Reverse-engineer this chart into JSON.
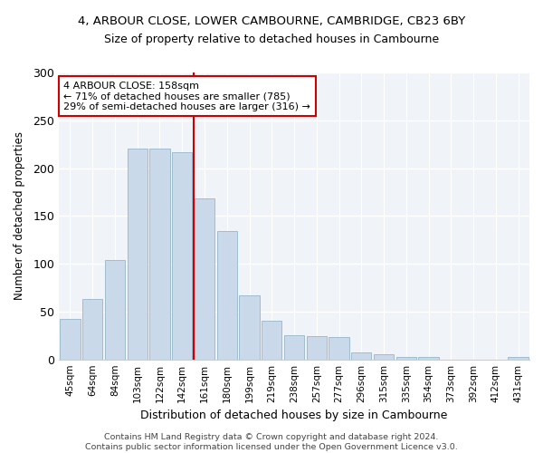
{
  "title1": "4, ARBOUR CLOSE, LOWER CAMBOURNE, CAMBRIDGE, CB23 6BY",
  "title2": "Size of property relative to detached houses in Cambourne",
  "xlabel": "Distribution of detached houses by size in Cambourne",
  "ylabel": "Number of detached properties",
  "bar_labels": [
    "45sqm",
    "64sqm",
    "84sqm",
    "103sqm",
    "122sqm",
    "142sqm",
    "161sqm",
    "180sqm",
    "199sqm",
    "219sqm",
    "238sqm",
    "257sqm",
    "277sqm",
    "296sqm",
    "315sqm",
    "335sqm",
    "354sqm",
    "373sqm",
    "392sqm",
    "412sqm",
    "431sqm"
  ],
  "bar_values": [
    42,
    63,
    104,
    220,
    220,
    217,
    168,
    134,
    67,
    40,
    25,
    24,
    23,
    7,
    5,
    3,
    3,
    0,
    0,
    0,
    3
  ],
  "bar_color": "#c9d9ea",
  "bar_edge_color": "#a0bcd0",
  "vline_color": "#cc0000",
  "annotation_text": "4 ARBOUR CLOSE: 158sqm\n← 71% of detached houses are smaller (785)\n29% of semi-detached houses are larger (316) →",
  "annotation_box_facecolor": "#ffffff",
  "annotation_box_edgecolor": "#cc0000",
  "ylim": [
    0,
    300
  ],
  "yticks": [
    0,
    50,
    100,
    150,
    200,
    250,
    300
  ],
  "footer": "Contains HM Land Registry data © Crown copyright and database right 2024.\nContains public sector information licensed under the Open Government Licence v3.0.",
  "fig_facecolor": "#ffffff",
  "axes_facecolor": "#f0f4f8"
}
